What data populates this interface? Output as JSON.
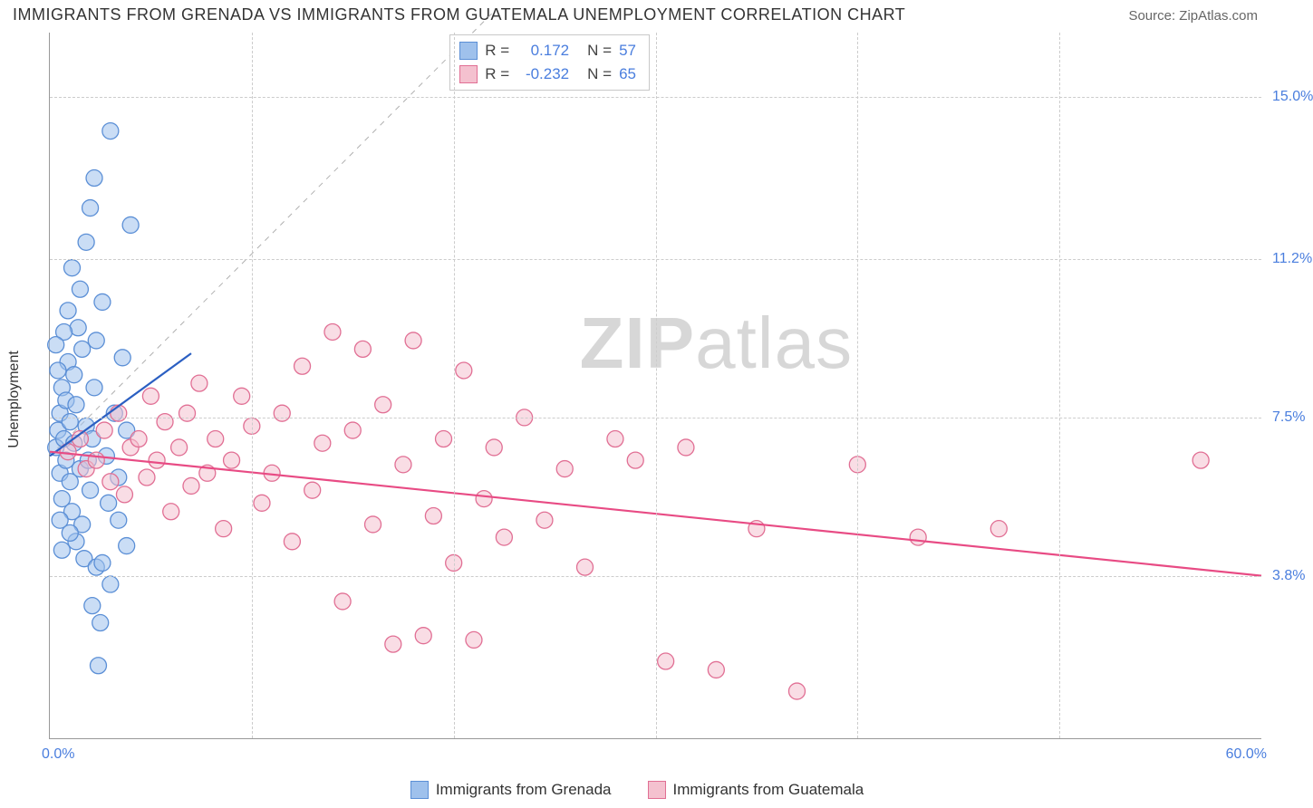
{
  "header": {
    "title": "IMMIGRANTS FROM GRENADA VS IMMIGRANTS FROM GUATEMALA UNEMPLOYMENT CORRELATION CHART",
    "source": "Source: ZipAtlas.com"
  },
  "watermark": {
    "bold": "ZIP",
    "rest": "atlas"
  },
  "chart": {
    "type": "scatter",
    "ylabel": "Unemployment",
    "xlim": [
      0,
      60
    ],
    "ylim": [
      0,
      16.5
    ],
    "x_axis_labels": {
      "min": "0.0%",
      "max": "60.0%"
    },
    "y_ticks": [
      {
        "v": 3.8,
        "label": "3.8%"
      },
      {
        "v": 7.5,
        "label": "7.5%"
      },
      {
        "v": 11.2,
        "label": "11.2%"
      },
      {
        "v": 15.0,
        "label": "15.0%"
      }
    ],
    "x_gridlines": [
      10,
      20,
      30,
      40,
      50
    ],
    "background_color": "#ffffff",
    "grid_color": "#cccccc",
    "axis_color": "#999999",
    "point_radius": 9,
    "point_opacity": 0.55,
    "series": [
      {
        "key": "grenada",
        "label": "Immigrants from Grenada",
        "fill": "#9fc1ec",
        "stroke": "#5b8fd6",
        "R_label": "R =",
        "R": "0.172",
        "N_label": "N =",
        "N": "57",
        "trend": {
          "x1": 0,
          "y1": 6.6,
          "x2": 7,
          "y2": 9.0,
          "color": "#2b5fc2",
          "width": 2.2
        },
        "points": [
          [
            0.3,
            6.8
          ],
          [
            0.4,
            7.2
          ],
          [
            0.5,
            7.6
          ],
          [
            0.5,
            6.2
          ],
          [
            0.6,
            8.2
          ],
          [
            0.6,
            5.6
          ],
          [
            0.7,
            7.0
          ],
          [
            0.8,
            7.9
          ],
          [
            0.8,
            6.5
          ],
          [
            0.9,
            8.8
          ],
          [
            1.0,
            6.0
          ],
          [
            1.0,
            7.4
          ],
          [
            1.1,
            5.3
          ],
          [
            1.2,
            8.5
          ],
          [
            1.2,
            6.9
          ],
          [
            1.3,
            4.6
          ],
          [
            1.3,
            7.8
          ],
          [
            1.4,
            9.6
          ],
          [
            1.5,
            10.5
          ],
          [
            1.5,
            6.3
          ],
          [
            1.6,
            5.0
          ],
          [
            1.7,
            4.2
          ],
          [
            1.8,
            11.6
          ],
          [
            1.8,
            7.3
          ],
          [
            2.0,
            12.4
          ],
          [
            2.0,
            5.8
          ],
          [
            2.1,
            3.1
          ],
          [
            2.2,
            13.1
          ],
          [
            2.2,
            8.2
          ],
          [
            2.3,
            4.0
          ],
          [
            2.4,
            1.7
          ],
          [
            2.5,
            2.7
          ],
          [
            2.6,
            10.2
          ],
          [
            2.8,
            6.6
          ],
          [
            3.0,
            14.2
          ],
          [
            3.0,
            3.6
          ],
          [
            3.2,
            7.6
          ],
          [
            3.4,
            5.1
          ],
          [
            3.6,
            8.9
          ],
          [
            3.8,
            4.5
          ],
          [
            4.0,
            12.0
          ],
          [
            1.0,
            4.8
          ],
          [
            0.7,
            9.5
          ],
          [
            0.9,
            10.0
          ],
          [
            1.1,
            11.0
          ],
          [
            1.6,
            9.1
          ],
          [
            1.9,
            6.5
          ],
          [
            2.1,
            7.0
          ],
          [
            2.6,
            4.1
          ],
          [
            0.4,
            8.6
          ],
          [
            0.3,
            9.2
          ],
          [
            0.5,
            5.1
          ],
          [
            0.6,
            4.4
          ],
          [
            2.9,
            5.5
          ],
          [
            3.4,
            6.1
          ],
          [
            2.3,
            9.3
          ],
          [
            3.8,
            7.2
          ]
        ]
      },
      {
        "key": "guatemala",
        "label": "Immigrants from Guatemala",
        "fill": "#f4c1cf",
        "stroke": "#e16f94",
        "R_label": "R =",
        "R": "-0.232",
        "N_label": "N =",
        "N": "65",
        "trend": {
          "x1": 0,
          "y1": 6.7,
          "x2": 60,
          "y2": 3.8,
          "color": "#e84b84",
          "width": 2.2
        },
        "points": [
          [
            0.9,
            6.7
          ],
          [
            1.5,
            7.0
          ],
          [
            1.8,
            6.3
          ],
          [
            2.3,
            6.5
          ],
          [
            2.7,
            7.2
          ],
          [
            3.0,
            6.0
          ],
          [
            3.4,
            7.6
          ],
          [
            3.7,
            5.7
          ],
          [
            4.0,
            6.8
          ],
          [
            4.4,
            7.0
          ],
          [
            4.8,
            6.1
          ],
          [
            5.0,
            8.0
          ],
          [
            5.3,
            6.5
          ],
          [
            5.7,
            7.4
          ],
          [
            6.0,
            5.3
          ],
          [
            6.4,
            6.8
          ],
          [
            6.8,
            7.6
          ],
          [
            7.0,
            5.9
          ],
          [
            7.4,
            8.3
          ],
          [
            7.8,
            6.2
          ],
          [
            8.2,
            7.0
          ],
          [
            8.6,
            4.9
          ],
          [
            9.0,
            6.5
          ],
          [
            9.5,
            8.0
          ],
          [
            10.0,
            7.3
          ],
          [
            10.5,
            5.5
          ],
          [
            11.0,
            6.2
          ],
          [
            11.5,
            7.6
          ],
          [
            12.0,
            4.6
          ],
          [
            12.5,
            8.7
          ],
          [
            13.0,
            5.8
          ],
          [
            13.5,
            6.9
          ],
          [
            14.0,
            9.5
          ],
          [
            14.5,
            3.2
          ],
          [
            15.0,
            7.2
          ],
          [
            15.5,
            9.1
          ],
          [
            16.0,
            5.0
          ],
          [
            16.5,
            7.8
          ],
          [
            17.0,
            2.2
          ],
          [
            17.5,
            6.4
          ],
          [
            18.0,
            9.3
          ],
          [
            18.5,
            2.4
          ],
          [
            19.0,
            5.2
          ],
          [
            19.5,
            7.0
          ],
          [
            20.0,
            4.1
          ],
          [
            20.5,
            8.6
          ],
          [
            21.0,
            2.3
          ],
          [
            21.5,
            5.6
          ],
          [
            22.0,
            6.8
          ],
          [
            22.5,
            4.7
          ],
          [
            23.5,
            7.5
          ],
          [
            24.5,
            5.1
          ],
          [
            25.5,
            6.3
          ],
          [
            26.5,
            4.0
          ],
          [
            28.0,
            7.0
          ],
          [
            29.0,
            6.5
          ],
          [
            30.5,
            1.8
          ],
          [
            31.5,
            6.8
          ],
          [
            33.0,
            1.6
          ],
          [
            35.0,
            4.9
          ],
          [
            37.0,
            1.1
          ],
          [
            40.0,
            6.4
          ],
          [
            43.0,
            4.7
          ],
          [
            47.0,
            4.9
          ],
          [
            57.0,
            6.5
          ]
        ]
      }
    ],
    "diag_ref_line": {
      "x1": 0,
      "y1": 6.6,
      "x2": 22,
      "y2": 17.0,
      "color": "#b0b0b0",
      "dash": "6,6",
      "width": 1
    }
  }
}
